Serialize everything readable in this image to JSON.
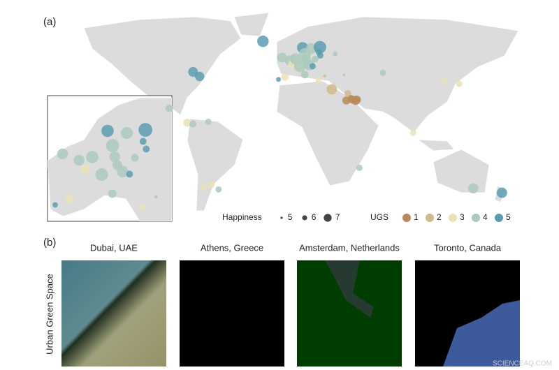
{
  "panel_a": {
    "label": "(a)",
    "legend": {
      "happiness_title": "Happiness",
      "happiness_levels": [
        5,
        6,
        7
      ],
      "ugs_title": "UGS",
      "ugs_levels": [
        1,
        2,
        3,
        4,
        5
      ],
      "ugs_colors": [
        "#b8895a",
        "#d2b98c",
        "#e9e3b6",
        "#abcabe",
        "#5c9db2"
      ]
    },
    "markers": [
      {
        "lon": -79.4,
        "lat": 43.7,
        "happiness": 7.0,
        "ugs": 5
      },
      {
        "lon": -74.0,
        "lat": 40.7,
        "happiness": 6.9,
        "ugs": 5
      },
      {
        "lon": -99.1,
        "lat": 19.4,
        "happiness": 6.3,
        "ugs": 4
      },
      {
        "lon": -84.1,
        "lat": 9.9,
        "happiness": 6.5,
        "ugs": 3
      },
      {
        "lon": -79.5,
        "lat": 9.0,
        "happiness": 6.2,
        "ugs": 4
      },
      {
        "lon": -66.9,
        "lat": 10.5,
        "happiness": 6.0,
        "ugs": 4
      },
      {
        "lon": -58.4,
        "lat": -34.6,
        "happiness": 6.0,
        "ugs": 4
      },
      {
        "lon": -70.6,
        "lat": -33.4,
        "happiness": 6.2,
        "ugs": 3
      },
      {
        "lon": -64.2,
        "lat": -31.4,
        "happiness": 6.0,
        "ugs": 3
      },
      {
        "lon": -21.9,
        "lat": 64.1,
        "happiness": 7.5,
        "ugs": 5
      },
      {
        "lon": -6.3,
        "lat": 53.3,
        "happiness": 7.0,
        "ugs": 4
      },
      {
        "lon": -0.1,
        "lat": 51.5,
        "happiness": 7.0,
        "ugs": 4
      },
      {
        "lon": 2.3,
        "lat": 48.9,
        "happiness": 6.6,
        "ugs": 3
      },
      {
        "lon": 4.9,
        "lat": 52.4,
        "happiness": 7.4,
        "ugs": 4
      },
      {
        "lon": 13.4,
        "lat": 52.5,
        "happiness": 7.0,
        "ugs": 4
      },
      {
        "lon": 10.7,
        "lat": 59.9,
        "happiness": 7.4,
        "ugs": 5
      },
      {
        "lon": 18.0,
        "lat": 59.3,
        "happiness": 7.3,
        "ugs": 4
      },
      {
        "lon": 25.0,
        "lat": 60.2,
        "happiness": 7.8,
        "ugs": 5
      },
      {
        "lon": 12.6,
        "lat": 55.7,
        "happiness": 7.6,
        "ugs": 4
      },
      {
        "lon": 24.1,
        "lat": 56.9,
        "happiness": 6.0,
        "ugs": 5
      },
      {
        "lon": 25.3,
        "lat": 54.7,
        "happiness": 6.0,
        "ugs": 5
      },
      {
        "lon": 21.0,
        "lat": 52.2,
        "happiness": 6.2,
        "ugs": 4
      },
      {
        "lon": 14.4,
        "lat": 50.1,
        "happiness": 6.8,
        "ugs": 4
      },
      {
        "lon": 16.4,
        "lat": 48.2,
        "happiness": 7.2,
        "ugs": 4
      },
      {
        "lon": 19.0,
        "lat": 47.5,
        "happiness": 6.0,
        "ugs": 5
      },
      {
        "lon": 8.5,
        "lat": 47.4,
        "happiness": 7.5,
        "ugs": 4
      },
      {
        "lon": 12.5,
        "lat": 41.9,
        "happiness": 6.4,
        "ugs": 4
      },
      {
        "lon": -3.7,
        "lat": 40.4,
        "happiness": 6.4,
        "ugs": 3
      },
      {
        "lon": -9.1,
        "lat": 38.7,
        "happiness": 5.6,
        "ugs": 5
      },
      {
        "lon": 23.7,
        "lat": 38.0,
        "happiness": 5.8,
        "ugs": 3
      },
      {
        "lon": 37.6,
        "lat": 55.8,
        "happiness": 5.6,
        "ugs": 4
      },
      {
        "lon": 29.0,
        "lat": 41.0,
        "happiness": 5.0,
        "ugs": 2
      },
      {
        "lon": 44.8,
        "lat": 41.7,
        "happiness": 5.0,
        "ugs": 4
      },
      {
        "lon": 31.2,
        "lat": 30.0,
        "happiness": 4.5,
        "ugs": 3
      },
      {
        "lon": 34.8,
        "lat": 32.1,
        "happiness": 7.2,
        "ugs": 2
      },
      {
        "lon": 46.7,
        "lat": 24.7,
        "happiness": 6.5,
        "ugs": 1
      },
      {
        "lon": 55.3,
        "lat": 25.2,
        "happiness": 6.6,
        "ugs": 1
      },
      {
        "lon": 54.4,
        "lat": 24.5,
        "happiness": 6.6,
        "ugs": 1
      },
      {
        "lon": 51.5,
        "lat": 25.3,
        "happiness": 6.5,
        "ugs": 1
      },
      {
        "lon": 48.0,
        "lat": 29.4,
        "happiness": 6.1,
        "ugs": 2
      },
      {
        "lon": 50.6,
        "lat": 26.2,
        "happiness": 6.0,
        "ugs": 1
      },
      {
        "lon": 101.7,
        "lat": 3.1,
        "happiness": 6.0,
        "ugs": 3
      },
      {
        "lon": 127.0,
        "lat": 37.5,
        "happiness": 5.9,
        "ugs": 3
      },
      {
        "lon": 139.7,
        "lat": 35.7,
        "happiness": 6.0,
        "ugs": 3
      },
      {
        "lon": 151.2,
        "lat": -33.9,
        "happiness": 7.1,
        "ugs": 4
      },
      {
        "lon": 174.8,
        "lat": -36.8,
        "happiness": 7.2,
        "ugs": 5
      },
      {
        "lon": 57.5,
        "lat": -20.2,
        "happiness": 6.0,
        "ugs": 4
      },
      {
        "lon": 76.9,
        "lat": 43.2,
        "happiness": 6.0,
        "ugs": 4
      }
    ]
  },
  "panel_b": {
    "label": "(b)",
    "row_label": "Urban Green Space",
    "cities": [
      "Dubai, UAE",
      "Athens, Greece",
      "Amsterdam, Netherlands",
      "Toronto, Canada"
    ]
  },
  "watermark": "SCIENCEAQ.COM"
}
